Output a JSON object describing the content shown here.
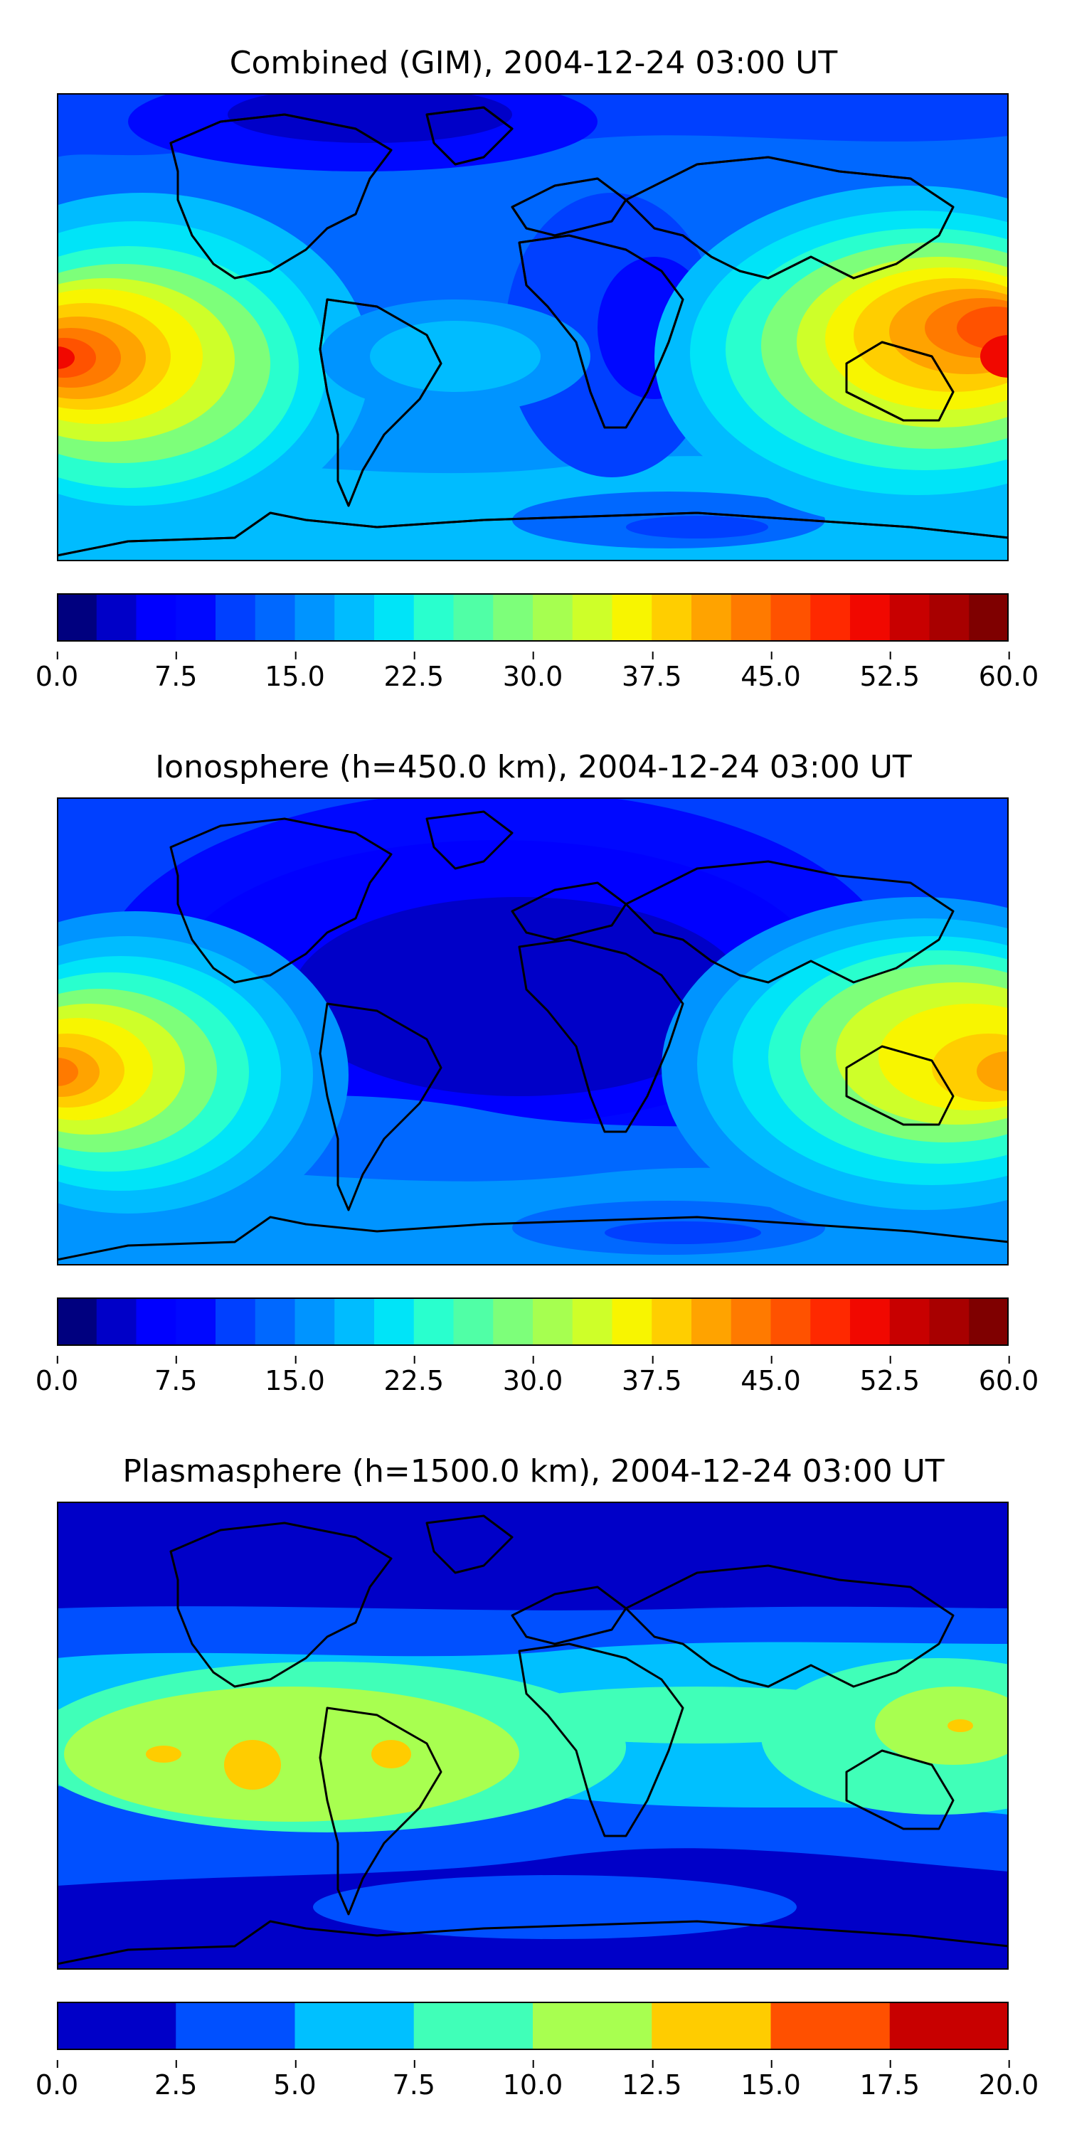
{
  "panels": [
    {
      "title": "Combined (GIM), 2004-12-24 03:00 UT",
      "colorbar": {
        "min": 0.0,
        "max": 60.0,
        "levels": 24,
        "tick_labels": [
          "0.0",
          "7.5",
          "15.0",
          "22.5",
          "30.0",
          "37.5",
          "45.0",
          "52.5",
          "60.0"
        ],
        "colors": [
          "#00007f",
          "#0000c8",
          "#0000ff",
          "#0008ff",
          "#0040ff",
          "#0068ff",
          "#0094ff",
          "#00bcff",
          "#00e4f8",
          "#29ffce",
          "#50ffa6",
          "#7dff7a",
          "#a6ff50",
          "#ceff29",
          "#f8f500",
          "#ffce00",
          "#ffa300",
          "#ff7a00",
          "#ff5200",
          "#ff2900",
          "#f10800",
          "#c80000",
          "#a80000",
          "#7f0000"
        ]
      }
    },
    {
      "title": "Ionosphere  (h=450.0 km), 2004-12-24 03:00 UT",
      "colorbar": {
        "min": 0.0,
        "max": 60.0,
        "levels": 24,
        "tick_labels": [
          "0.0",
          "7.5",
          "15.0",
          "22.5",
          "30.0",
          "37.5",
          "45.0",
          "52.5",
          "60.0"
        ],
        "colors": [
          "#00007f",
          "#0000c8",
          "#0000ff",
          "#0008ff",
          "#0040ff",
          "#0068ff",
          "#0094ff",
          "#00bcff",
          "#00e4f8",
          "#29ffce",
          "#50ffa6",
          "#7dff7a",
          "#a6ff50",
          "#ceff29",
          "#f8f500",
          "#ffce00",
          "#ffa300",
          "#ff7a00",
          "#ff5200",
          "#ff2900",
          "#f10800",
          "#c80000",
          "#a80000",
          "#7f0000"
        ]
      }
    },
    {
      "title": "Plasmasphere (h=1500.0 km), 2004-12-24 03:00 UT",
      "colorbar": {
        "min": 0.0,
        "max": 20.0,
        "levels": 8,
        "tick_labels": [
          "0.0",
          "2.5",
          "5.0",
          "7.5",
          "10.0",
          "12.5",
          "15.0",
          "17.5",
          "20.0"
        ],
        "colors": [
          "#0000c8",
          "#0050ff",
          "#00c0ff",
          "#40ffb8",
          "#a8ff50",
          "#ffcc00",
          "#ff5000",
          "#c80000"
        ]
      }
    }
  ]
}
